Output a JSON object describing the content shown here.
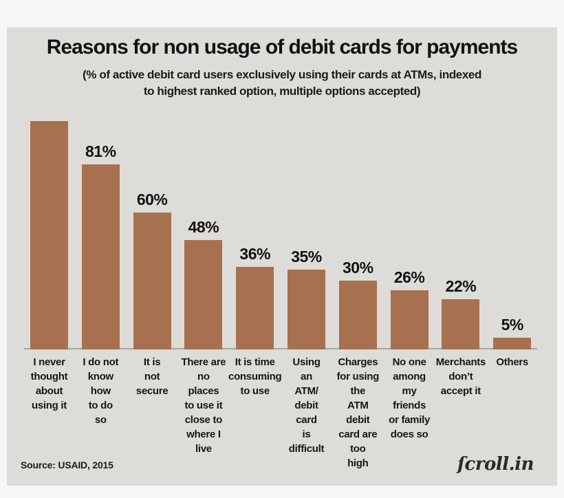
{
  "header": {
    "title": "Reasons for non usage of debit cards for payments",
    "subtitle": "(% of active debit card users exclusively using their cards at ATMs, indexed\nto highest ranked option, multiple options accepted)"
  },
  "footer": {
    "source": "Source: USAID, 2015",
    "logo": "ſcroll.in"
  },
  "chart_data": {
    "type": "bar",
    "title": "Reasons for non usage of debit cards for payments",
    "subtitle": "(% of active debit card users exclusively using their cards at ATMs, indexed to highest ranked option, multiple options accepted)",
    "categories": [
      "I never thought about using it",
      "I do not know how to do so",
      "It is not secure",
      "There are no places to use it close to where I live",
      "It is time consuming to use",
      "Using an ATM/ debit card is difficult",
      "Charges for using the ATM debit card are too high",
      "No one among my friends or family does so",
      "Merchants don’t accept it",
      "Others"
    ],
    "tick_labels": [
      "I never\nthought\nabout\nusing it",
      "I do not\nknow\nhow\nto do\nso",
      "It is\nnot\nsecure",
      "There are\nno\nplaces\nto use it\nclose to\nwhere I\nlive",
      "It is time\nconsuming\nto use",
      "Using\nan\nATM/\ndebit\ncard\nis\ndifficult",
      "Charges\nfor using\nthe\nATM\ndebit\ncard are\ntoo\nhigh",
      "No one\namong\nmy\nfriends\nor family\ndoes so",
      "Merchants\ndon’t\naccept it",
      "Others"
    ],
    "values": [
      100,
      81,
      60,
      48,
      36,
      35,
      30,
      26,
      22,
      5
    ],
    "value_labels": [
      "",
      "81%",
      "60%",
      "48%",
      "36%",
      "35%",
      "30%",
      "26%",
      "22%",
      "5%"
    ],
    "ylim": [
      0,
      100
    ],
    "grid": false,
    "legend_position": "none",
    "bar_color": "#a7704e",
    "axis_color": "#a6a49f",
    "source": "Source: USAID, 2015"
  }
}
